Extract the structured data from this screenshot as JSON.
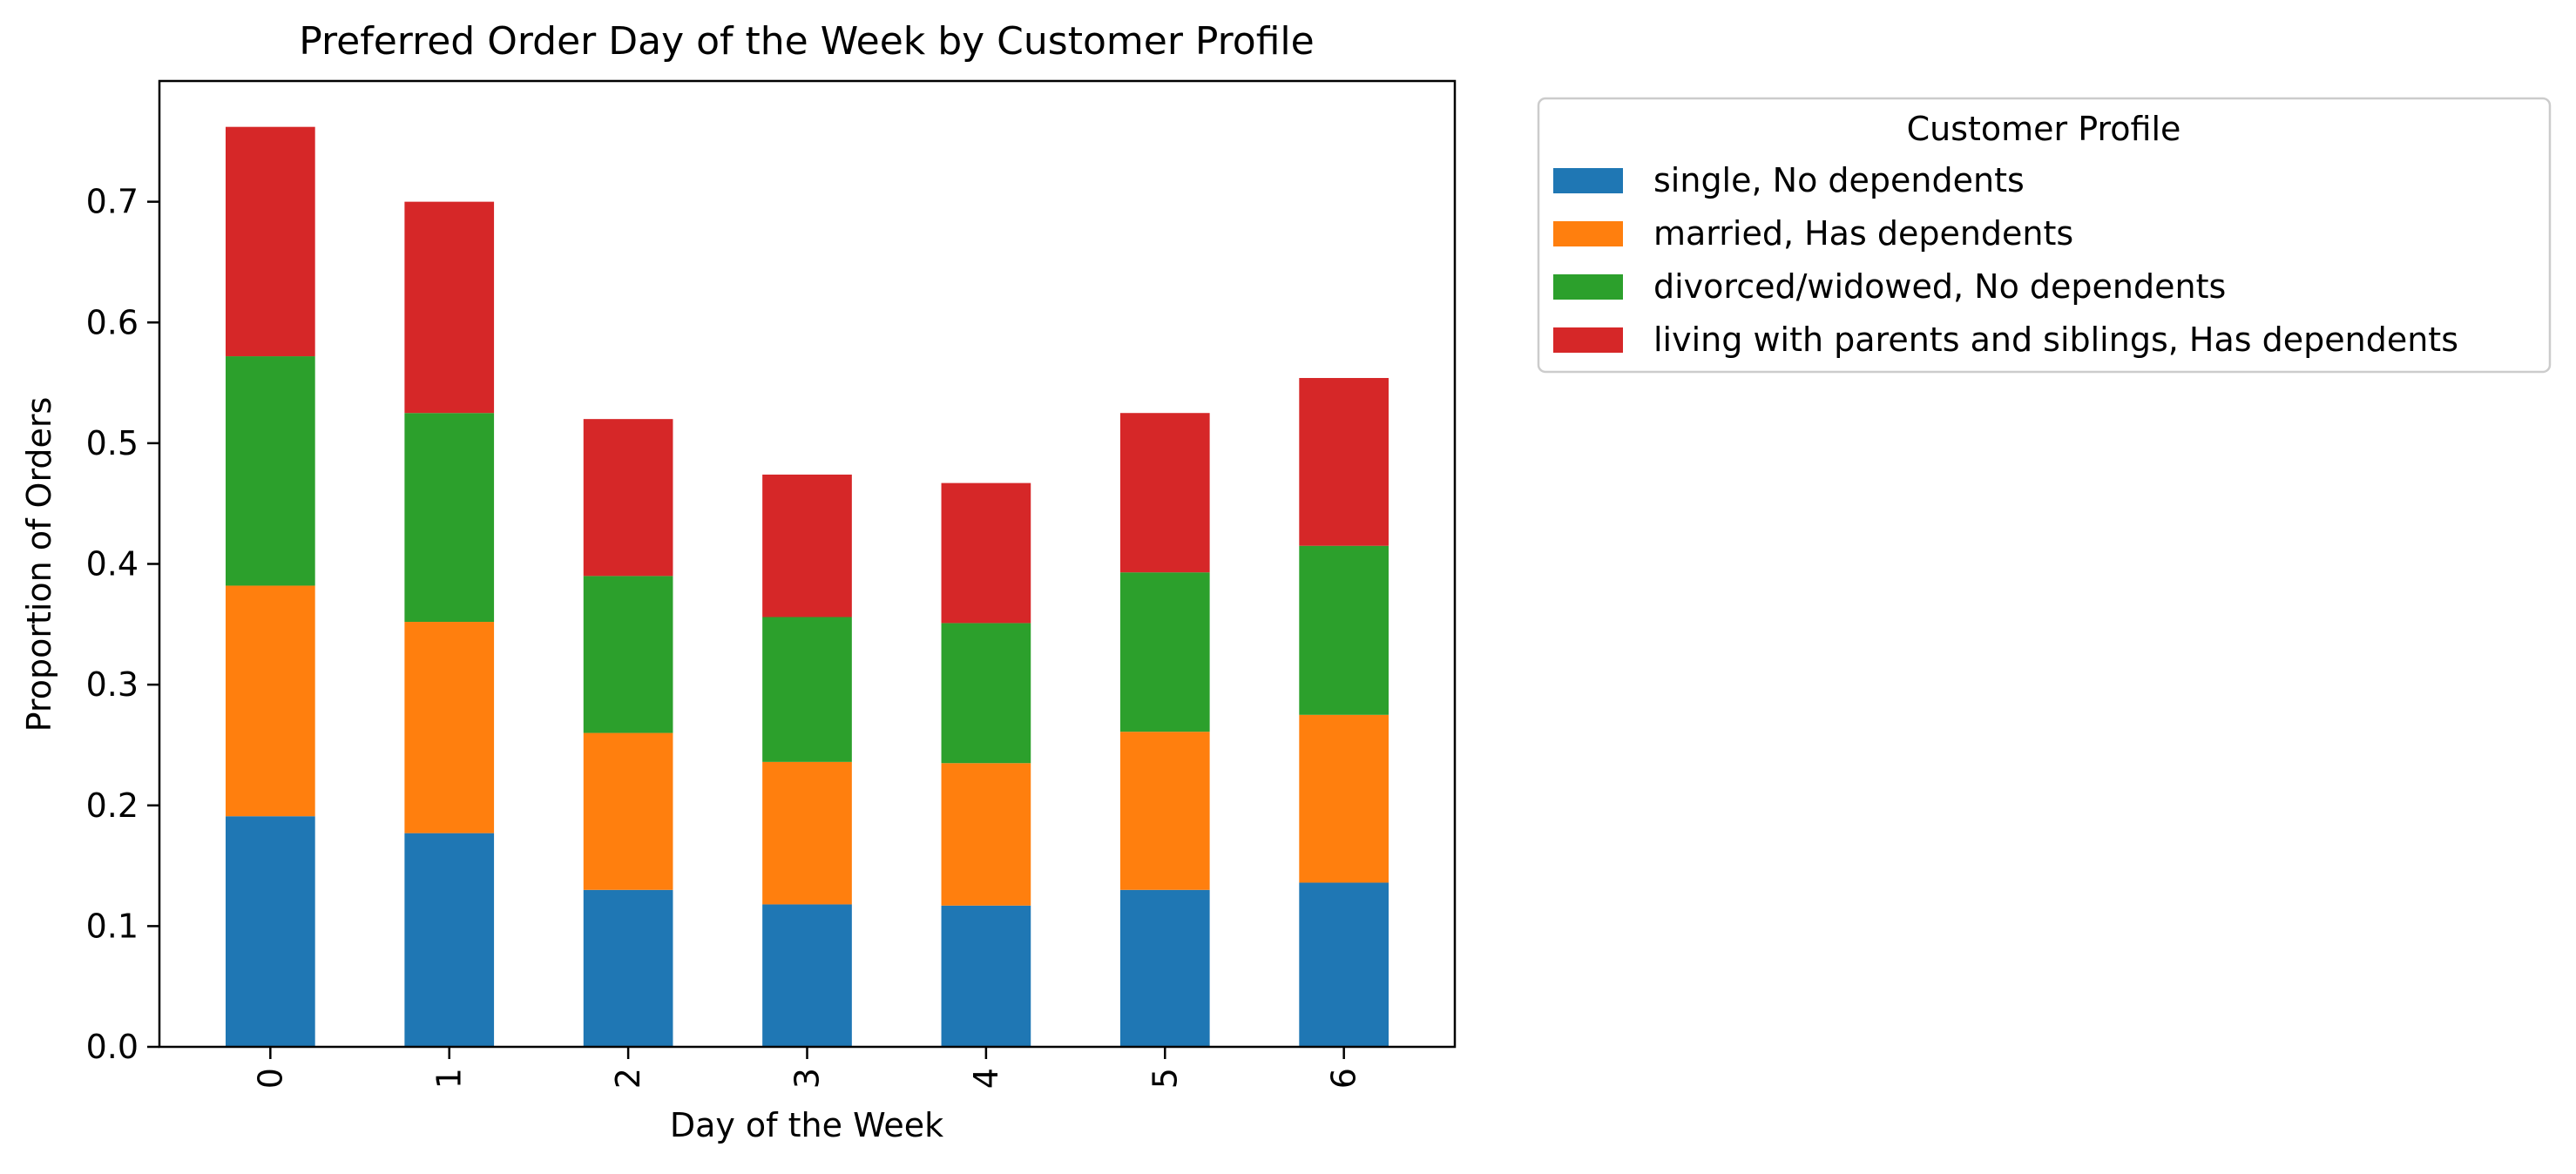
{
  "chart_data": {
    "type": "bar",
    "stacked": true,
    "title": "Preferred Order Day of the Week by Customer Profile",
    "xlabel": "Day of the Week",
    "ylabel": "Proportion of Orders",
    "categories": [
      "0",
      "1",
      "2",
      "3",
      "4",
      "5",
      "6"
    ],
    "ylim": [
      0,
      0.8
    ],
    "yticks": [
      "0.0",
      "0.1",
      "0.2",
      "0.3",
      "0.4",
      "0.5",
      "0.6",
      "0.7"
    ],
    "grid": false,
    "legend": {
      "title": "Customer Profile",
      "position": "outside-right-top"
    },
    "series": [
      {
        "name": "single, No dependents",
        "color": "#1f77b4",
        "values": [
          0.191,
          0.177,
          0.13,
          0.118,
          0.117,
          0.13,
          0.136
        ]
      },
      {
        "name": "married, Has dependents",
        "color": "#ff7f0e",
        "values": [
          0.191,
          0.175,
          0.13,
          0.118,
          0.118,
          0.131,
          0.139
        ]
      },
      {
        "name": "divorced/widowed, No dependents",
        "color": "#2ca02c",
        "values": [
          0.19,
          0.173,
          0.13,
          0.12,
          0.116,
          0.132,
          0.14
        ]
      },
      {
        "name": "living with parents and siblings, Has dependents",
        "color": "#d62728",
        "values": [
          0.19,
          0.175,
          0.13,
          0.118,
          0.116,
          0.132,
          0.139
        ]
      }
    ]
  }
}
